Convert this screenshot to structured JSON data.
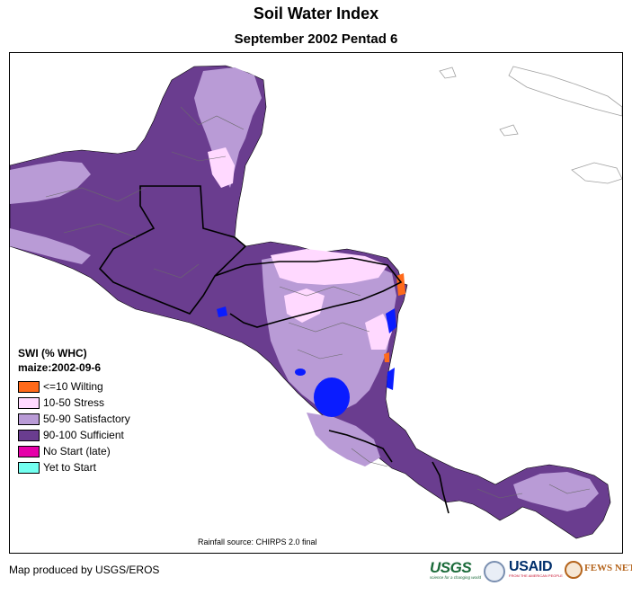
{
  "header": {
    "title": "Soil Water Index",
    "subtitle": "September 2002 Pentad 6"
  },
  "legend": {
    "title": "SWI (% WHC)",
    "subtitle": "maize:2002-09-6",
    "items": [
      {
        "label": "<=10 Wilting",
        "color": "#ff6a1a"
      },
      {
        "label": "10-50 Stress",
        "color": "#ffd9ff"
      },
      {
        "label": "50-90 Satisfactory",
        "color": "#b99bd6"
      },
      {
        "label": "90-100 Sufficient",
        "color": "#6a3d8f"
      },
      {
        "label": "No Start (late)",
        "color": "#e600a9"
      },
      {
        "label": "Yet to Start",
        "color": "#73fff0"
      }
    ]
  },
  "map": {
    "water_color": "#0a1cff",
    "sufficient_color": "#6a3d8f",
    "satisfactory_color": "#b99bd6",
    "stress_color": "#ffd9ff"
  },
  "footer": {
    "source": "Rainfall source: CHIRPS 2.0 final",
    "producer": "Map produced by USGS/EROS",
    "logos": {
      "usgs": "USGS",
      "usgs_tagline": "science for a changing world",
      "usaid": "USAID",
      "usaid_tagline": "FROM THE AMERICAN PEOPLE",
      "fews": "FEWS NET"
    }
  }
}
